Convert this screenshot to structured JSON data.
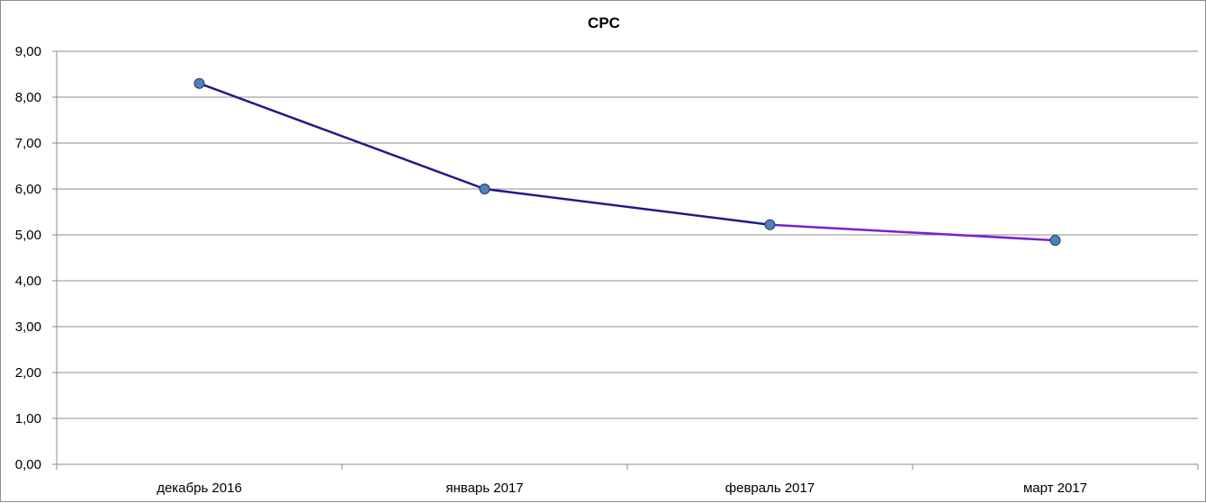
{
  "chart_data": {
    "type": "line",
    "title": "CPC",
    "xlabel": "",
    "ylabel": "",
    "categories": [
      "декабрь 2016",
      "январь 2017",
      "февраль 2017",
      "март 2017"
    ],
    "series": [
      {
        "values": [
          8.3,
          6.0,
          5.22,
          4.88
        ]
      }
    ],
    "ylim": [
      0,
      9
    ],
    "ytick_step": 1,
    "ytick_labels": [
      "0,00",
      "1,00",
      "2,00",
      "3,00",
      "4,00",
      "5,00",
      "6,00",
      "7,00",
      "8,00",
      "9,00"
    ],
    "grid": true,
    "legend": "none",
    "line_color": "#1f1a8c",
    "line_end_color": "#7a22c8",
    "marker_fill": "#4f81bd",
    "marker_stroke": "#1f3864",
    "grid_color": "#8c8c8c"
  }
}
